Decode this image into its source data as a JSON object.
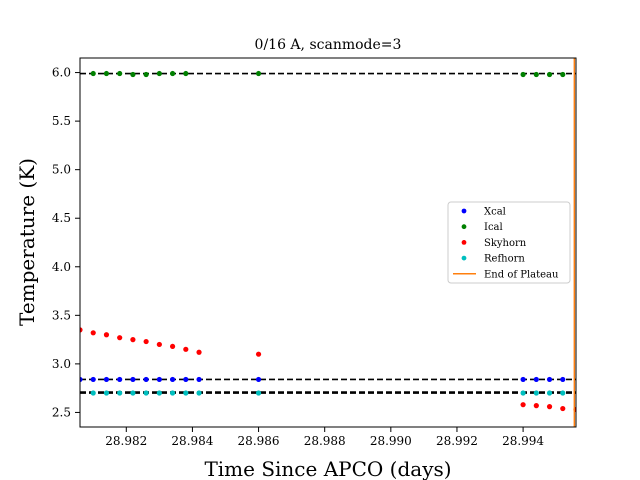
{
  "chart_data": {
    "type": "scatter",
    "title": "0/16 A, scanmode=3",
    "xlabel": "Time Since APCO (days)",
    "ylabel": "Temperature (K)",
    "xlim": [
      28.9806,
      28.9956
    ],
    "ylim": [
      2.35,
      6.15
    ],
    "xticks": [
      28.982,
      28.984,
      28.986,
      28.988,
      28.99,
      28.992,
      28.994
    ],
    "xtick_labels": [
      "28.982",
      "28.984",
      "28.986",
      "28.988",
      "28.990",
      "28.992",
      "28.994"
    ],
    "yticks": [
      2.5,
      3.0,
      3.5,
      4.0,
      4.5,
      5.0,
      5.5,
      6.0
    ],
    "ytick_labels": [
      "2.5",
      "3.0",
      "3.5",
      "4.0",
      "4.5",
      "5.0",
      "5.5",
      "6.0"
    ],
    "grid": false,
    "legend_position": "center-right",
    "reference_lines": [
      {
        "y": 5.99,
        "style": "dashed",
        "color": "#000000"
      },
      {
        "y": 2.84,
        "style": "dashed",
        "color": "#000000"
      },
      {
        "y": 2.71,
        "style": "dashed",
        "color": "#000000"
      },
      {
        "y": 2.7,
        "style": "dashed",
        "color": "#000000"
      }
    ],
    "vertical_line": {
      "name": "End of Plateau",
      "x": 28.99555,
      "color": "#ff7f0e"
    },
    "series": [
      {
        "name": "Xcal",
        "color": "#0000ff",
        "x": [
          28.9806,
          28.981,
          28.9814,
          28.9818,
          28.9822,
          28.9826,
          28.983,
          28.9834,
          28.9838,
          28.9842,
          28.986,
          28.994,
          28.9944,
          28.9948,
          28.9952
        ],
        "y": [
          2.84,
          2.84,
          2.84,
          2.84,
          2.84,
          2.84,
          2.84,
          2.84,
          2.84,
          2.84,
          2.84,
          2.84,
          2.84,
          2.84,
          2.84
        ]
      },
      {
        "name": "Ical",
        "color": "#008000",
        "x": [
          28.981,
          28.9814,
          28.9818,
          28.9822,
          28.9826,
          28.983,
          28.9834,
          28.9838,
          28.986,
          28.994,
          28.9944,
          28.9948,
          28.9952
        ],
        "y": [
          5.99,
          5.99,
          5.99,
          5.98,
          5.98,
          5.99,
          5.99,
          5.99,
          5.99,
          5.98,
          5.98,
          5.98,
          5.98
        ]
      },
      {
        "name": "Skyhorn",
        "color": "#ff0000",
        "x": [
          28.9806,
          28.981,
          28.9814,
          28.9818,
          28.9822,
          28.9826,
          28.983,
          28.9834,
          28.9838,
          28.9842,
          28.986,
          28.994,
          28.9944,
          28.9948,
          28.9952,
          28.9956
        ],
        "y": [
          3.35,
          3.32,
          3.3,
          3.27,
          3.25,
          3.23,
          3.2,
          3.18,
          3.15,
          3.12,
          3.1,
          2.58,
          2.57,
          2.56,
          2.54,
          2.53
        ]
      },
      {
        "name": "Refhorn",
        "color": "#00bfbf",
        "x": [
          28.981,
          28.9814,
          28.9818,
          28.9822,
          28.9826,
          28.983,
          28.9834,
          28.9838,
          28.9842,
          28.986,
          28.994,
          28.9944,
          28.9948,
          28.9952
        ],
        "y": [
          2.7,
          2.7,
          2.7,
          2.7,
          2.7,
          2.7,
          2.7,
          2.7,
          2.7,
          2.7,
          2.7,
          2.7,
          2.7,
          2.7
        ]
      }
    ]
  }
}
